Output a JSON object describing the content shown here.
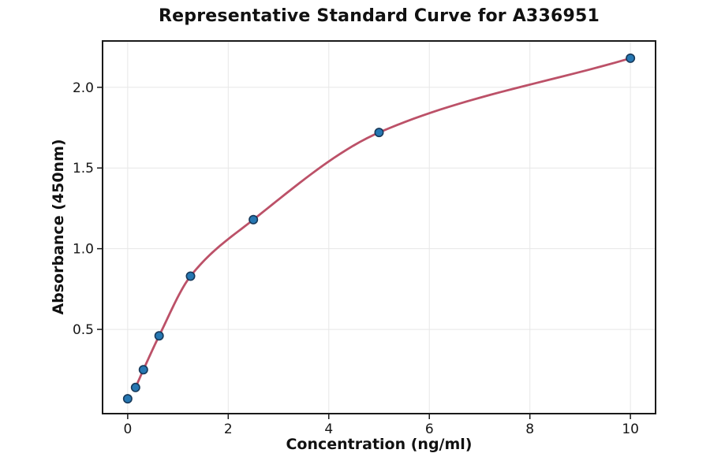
{
  "chart_data": {
    "type": "scatter",
    "title": "Representative Standard Curve for A336951",
    "xlabel": "Concentration (ng/ml)",
    "ylabel": "Absorbance (450nm)",
    "x": [
      0,
      0.156,
      0.3125,
      0.625,
      1.25,
      2.5,
      5,
      10
    ],
    "y": [
      0.07,
      0.14,
      0.25,
      0.46,
      0.83,
      1.18,
      1.72,
      2.18
    ],
    "fit_curve": {
      "description": "smooth saturating standard-curve fit through non-zero points",
      "x_start": 0.156,
      "x_end": 10
    },
    "xlim": [
      -0.5,
      10.5
    ],
    "ylim": [
      -0.022,
      2.287
    ],
    "x_ticks": [
      0,
      2,
      4,
      6,
      8,
      10
    ],
    "x_tick_labels": [
      "0",
      "2",
      "4",
      "6",
      "8",
      "10"
    ],
    "y_ticks": [
      0.5,
      1.0,
      1.5,
      2.0
    ],
    "y_tick_labels": [
      "0.5",
      "1.0",
      "1.5",
      "2.0"
    ],
    "grid": true,
    "legend": "none",
    "colors": {
      "marker_fill": "#2677b2",
      "marker_edge": "#17395a",
      "fit_line": "#bc5168",
      "grid": "#e7e7e7",
      "spine": "#1a1a1a",
      "text": "#151515",
      "background": "#ffffff"
    }
  }
}
